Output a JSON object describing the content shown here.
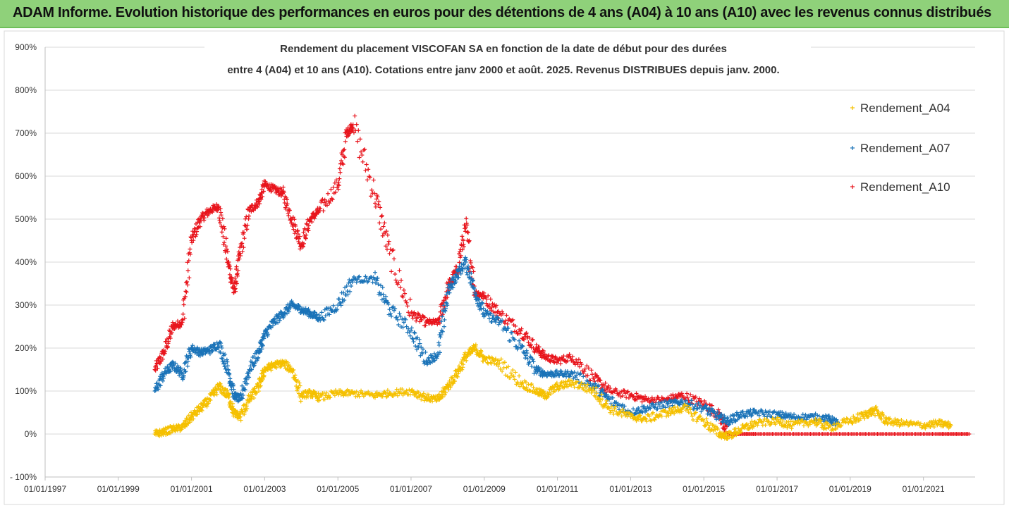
{
  "header": {
    "title": "ADAM Informe. Evolution historique des performances en euros pour des détentions de 4 ans (A04) à 10 ans (A10) avec les revenus connus distribués"
  },
  "chart_data": {
    "type": "scatter",
    "title_line1": "Rendement du placement VISCOFAN SA en fonction de la date de début pour des durées",
    "title_line2": "entre 4 (A04) et 10 ans (A10). Cotations entre janv 2000 et août. 2025. Revenus DISTRIBUES depuis janv. 2000.",
    "xlabel": "",
    "ylabel": "",
    "x_range": [
      "1997-01-01",
      "2022-06-01"
    ],
    "ylim": [
      -100,
      900
    ],
    "y_ticks": [
      -100,
      0,
      100,
      200,
      300,
      400,
      500,
      600,
      700,
      800,
      900
    ],
    "y_tick_labels": [
      "- 100%",
      "0%",
      "100%",
      "200%",
      "300%",
      "400%",
      "500%",
      "600%",
      "700%",
      "800%",
      "900%"
    ],
    "x_ticks": [
      "1997-01-01",
      "1999-01-01",
      "2001-01-01",
      "2003-01-01",
      "2005-01-01",
      "2007-01-01",
      "2009-01-01",
      "2011-01-01",
      "2013-01-01",
      "2015-01-01",
      "2017-01-01",
      "2019-01-01",
      "2021-01-01"
    ],
    "x_tick_labels": [
      "01/01/1997",
      "01/01/1999",
      "01/01/2001",
      "01/01/2003",
      "01/01/2005",
      "01/01/2007",
      "01/01/2009",
      "01/01/2011",
      "01/01/2013",
      "01/01/2015",
      "01/01/2017",
      "01/01/2019",
      "01/01/2021"
    ],
    "grid": true,
    "legend_position": "right",
    "marker": "plus",
    "series": [
      {
        "name": "Rendement_A04",
        "color": "#f5c000",
        "points": [
          [
            "2000-01-01",
            0
          ],
          [
            "2000-04-01",
            5
          ],
          [
            "2000-07-01",
            12
          ],
          [
            "2000-10-01",
            15
          ],
          [
            "2001-01-01",
            40
          ],
          [
            "2001-04-01",
            60
          ],
          [
            "2001-07-01",
            80
          ],
          [
            "2001-10-01",
            110
          ],
          [
            "2002-01-01",
            90
          ],
          [
            "2002-03-01",
            50
          ],
          [
            "2002-05-01",
            40
          ],
          [
            "2002-08-01",
            80
          ],
          [
            "2002-11-01",
            110
          ],
          [
            "2003-01-01",
            150
          ],
          [
            "2003-04-01",
            160
          ],
          [
            "2003-07-01",
            165
          ],
          [
            "2003-10-01",
            150
          ],
          [
            "2004-01-01",
            90
          ],
          [
            "2004-04-01",
            95
          ],
          [
            "2004-07-01",
            85
          ],
          [
            "2005-01-01",
            95
          ],
          [
            "2005-06-01",
            95
          ],
          [
            "2006-01-01",
            90
          ],
          [
            "2006-06-01",
            95
          ],
          [
            "2007-01-01",
            100
          ],
          [
            "2007-06-01",
            85
          ],
          [
            "2007-10-01",
            80
          ],
          [
            "2008-01-01",
            110
          ],
          [
            "2008-04-01",
            140
          ],
          [
            "2008-07-01",
            180
          ],
          [
            "2008-10-01",
            200
          ],
          [
            "2009-01-01",
            175
          ],
          [
            "2009-06-01",
            165
          ],
          [
            "2010-01-01",
            120
          ],
          [
            "2010-06-01",
            100
          ],
          [
            "2010-09-01",
            90
          ],
          [
            "2011-01-01",
            110
          ],
          [
            "2011-06-01",
            120
          ],
          [
            "2012-01-01",
            100
          ],
          [
            "2012-06-01",
            60
          ],
          [
            "2013-01-01",
            40
          ],
          [
            "2013-06-01",
            35
          ],
          [
            "2014-01-01",
            50
          ],
          [
            "2014-06-01",
            60
          ],
          [
            "2015-01-01",
            30
          ],
          [
            "2015-06-01",
            0
          ],
          [
            "2015-09-01",
            -5
          ],
          [
            "2016-01-01",
            10
          ],
          [
            "2016-06-01",
            25
          ],
          [
            "2017-01-01",
            30
          ],
          [
            "2017-06-01",
            20
          ],
          [
            "2018-01-01",
            30
          ],
          [
            "2018-06-01",
            15
          ],
          [
            "2019-01-01",
            30
          ],
          [
            "2019-06-01",
            45
          ],
          [
            "2019-09-01",
            55
          ],
          [
            "2020-01-01",
            30
          ],
          [
            "2020-06-01",
            25
          ],
          [
            "2021-01-01",
            20
          ],
          [
            "2021-06-01",
            25
          ],
          [
            "2021-10-01",
            20
          ]
        ]
      },
      {
        "name": "Rendement_A07",
        "color": "#1a73b8",
        "points": [
          [
            "2000-01-01",
            100
          ],
          [
            "2000-04-01",
            140
          ],
          [
            "2000-07-01",
            160
          ],
          [
            "2000-10-01",
            140
          ],
          [
            "2001-01-01",
            200
          ],
          [
            "2001-04-01",
            190
          ],
          [
            "2001-07-01",
            195
          ],
          [
            "2001-10-01",
            210
          ],
          [
            "2002-01-01",
            150
          ],
          [
            "2002-03-01",
            90
          ],
          [
            "2002-05-01",
            80
          ],
          [
            "2002-08-01",
            150
          ],
          [
            "2002-11-01",
            190
          ],
          [
            "2003-01-01",
            230
          ],
          [
            "2003-04-01",
            260
          ],
          [
            "2003-07-01",
            280
          ],
          [
            "2003-10-01",
            300
          ],
          [
            "2004-01-01",
            290
          ],
          [
            "2004-04-01",
            280
          ],
          [
            "2004-07-01",
            270
          ],
          [
            "2005-01-01",
            300
          ],
          [
            "2005-06-01",
            360
          ],
          [
            "2006-01-01",
            360
          ],
          [
            "2006-06-01",
            290
          ],
          [
            "2007-01-01",
            240
          ],
          [
            "2007-06-01",
            170
          ],
          [
            "2007-10-01",
            185
          ],
          [
            "2008-01-01",
            330
          ],
          [
            "2008-04-01",
            370
          ],
          [
            "2008-07-01",
            400
          ],
          [
            "2008-10-01",
            330
          ],
          [
            "2009-01-01",
            280
          ],
          [
            "2009-06-01",
            260
          ],
          [
            "2010-01-01",
            200
          ],
          [
            "2010-06-01",
            150
          ],
          [
            "2010-09-01",
            140
          ],
          [
            "2011-01-01",
            140
          ],
          [
            "2011-06-01",
            140
          ],
          [
            "2012-01-01",
            110
          ],
          [
            "2012-06-01",
            80
          ],
          [
            "2013-01-01",
            50
          ],
          [
            "2013-06-01",
            60
          ],
          [
            "2014-01-01",
            70
          ],
          [
            "2014-06-01",
            75
          ],
          [
            "2015-01-01",
            60
          ],
          [
            "2015-06-01",
            40
          ],
          [
            "2015-09-01",
            30
          ],
          [
            "2016-01-01",
            45
          ],
          [
            "2016-06-01",
            50
          ],
          [
            "2017-01-01",
            45
          ],
          [
            "2017-06-01",
            40
          ],
          [
            "2018-01-01",
            40
          ],
          [
            "2018-06-01",
            35
          ],
          [
            "2018-09-01",
            25
          ]
        ]
      },
      {
        "name": "Rendement_A10",
        "color": "#e8141c",
        "points": [
          [
            "2000-01-01",
            150
          ],
          [
            "2000-04-01",
            190
          ],
          [
            "2000-07-01",
            250
          ],
          [
            "2000-10-01",
            260
          ],
          [
            "2001-01-01",
            450
          ],
          [
            "2001-04-01",
            500
          ],
          [
            "2001-07-01",
            520
          ],
          [
            "2001-10-01",
            530
          ],
          [
            "2002-01-01",
            400
          ],
          [
            "2002-03-01",
            330
          ],
          [
            "2002-05-01",
            420
          ],
          [
            "2002-08-01",
            520
          ],
          [
            "2002-11-01",
            540
          ],
          [
            "2003-01-01",
            580
          ],
          [
            "2003-04-01",
            570
          ],
          [
            "2003-07-01",
            560
          ],
          [
            "2003-10-01",
            500
          ],
          [
            "2004-01-01",
            440
          ],
          [
            "2004-04-01",
            500
          ],
          [
            "2004-07-01",
            520
          ],
          [
            "2005-01-01",
            580
          ],
          [
            "2005-04-01",
            700
          ],
          [
            "2005-06-01",
            720
          ],
          [
            "2006-01-01",
            560
          ],
          [
            "2006-06-01",
            420
          ],
          [
            "2007-01-01",
            280
          ],
          [
            "2007-06-01",
            260
          ],
          [
            "2007-10-01",
            260
          ],
          [
            "2008-01-01",
            340
          ],
          [
            "2008-04-01",
            380
          ],
          [
            "2008-07-01",
            480
          ],
          [
            "2008-10-01",
            330
          ],
          [
            "2009-01-01",
            320
          ],
          [
            "2009-06-01",
            280
          ],
          [
            "2010-01-01",
            240
          ],
          [
            "2010-06-01",
            200
          ],
          [
            "2010-09-01",
            180
          ],
          [
            "2011-01-01",
            170
          ],
          [
            "2011-06-01",
            180
          ],
          [
            "2012-01-01",
            130
          ],
          [
            "2012-06-01",
            100
          ],
          [
            "2013-01-01",
            90
          ],
          [
            "2013-06-01",
            80
          ],
          [
            "2014-01-01",
            80
          ],
          [
            "2014-06-01",
            90
          ],
          [
            "2015-01-01",
            70
          ],
          [
            "2015-06-01",
            45
          ],
          [
            "2015-09-01",
            0
          ],
          [
            "2016-06-01",
            0
          ],
          [
            "2017-06-01",
            0
          ],
          [
            "2018-06-01",
            0
          ],
          [
            "2019-06-01",
            0
          ],
          [
            "2020-06-01",
            0
          ],
          [
            "2021-06-01",
            0
          ],
          [
            "2022-04-01",
            0
          ]
        ]
      }
    ]
  }
}
